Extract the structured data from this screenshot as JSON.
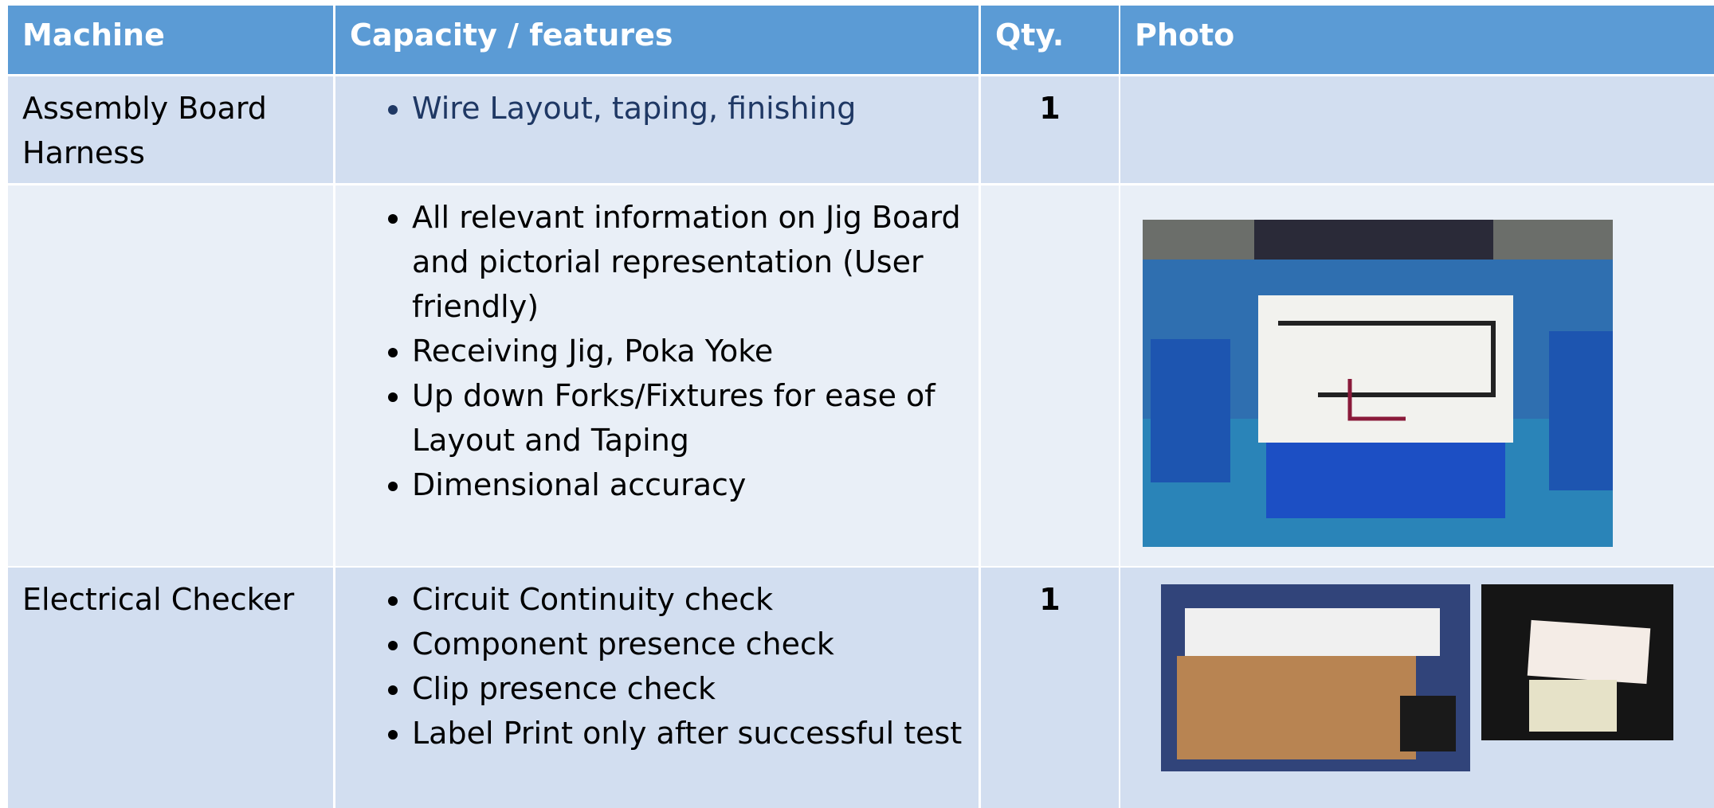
{
  "table": {
    "headers": [
      "Machine",
      "Capacity / features",
      "Qty.",
      "Photo"
    ],
    "rows": [
      {
        "machine": "Assembly Board Harness",
        "features": [
          "Wire Layout, taping, finishing"
        ],
        "qty": "1"
      },
      {
        "features": [
          "All relevant information on Jig Board and pictorial representation (User friendly)",
          "Receiving Jig, Poka Yoke",
          "Up down Forks/Fixtures for ease of Layout and Taping",
          " Dimensional accuracy"
        ]
      },
      {
        "machine": "Electrical Checker",
        "features": [
          "Circuit Continuity check",
          "Component presence check",
          "Clip presence check",
          "Label Print only after successful test"
        ],
        "qty": "1"
      }
    ]
  }
}
